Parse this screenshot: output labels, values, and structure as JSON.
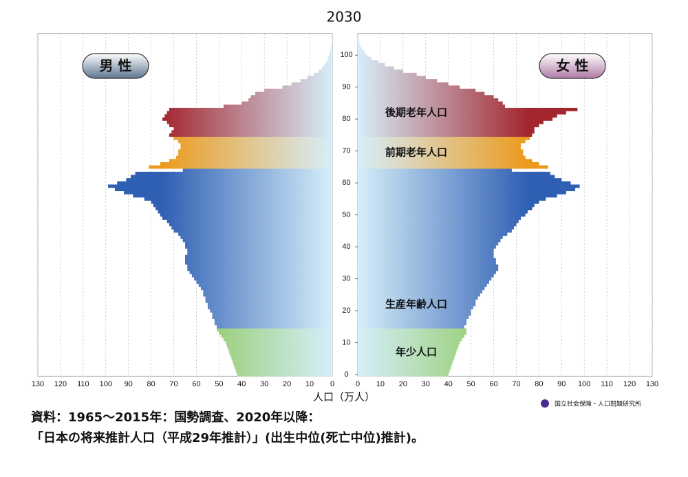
{
  "chart_data": {
    "type": "pyramid",
    "title": "2030",
    "x_label": "人口（万人）",
    "xlim": [
      0,
      130
    ],
    "xticks": [
      0,
      10,
      20,
      30,
      40,
      50,
      60,
      70,
      80,
      90,
      100,
      110,
      120,
      130
    ],
    "ylim": [
      0,
      105
    ],
    "yticks": [
      0,
      10,
      20,
      30,
      40,
      50,
      60,
      70,
      80,
      90,
      100
    ],
    "grid": true,
    "y": [
      0,
      1,
      2,
      3,
      4,
      5,
      6,
      7,
      8,
      9,
      10,
      11,
      12,
      13,
      14,
      15,
      16,
      17,
      18,
      19,
      20,
      21,
      22,
      23,
      24,
      25,
      26,
      27,
      28,
      29,
      30,
      31,
      32,
      33,
      34,
      35,
      36,
      37,
      38,
      39,
      40,
      41,
      42,
      43,
      44,
      45,
      46,
      47,
      48,
      49,
      50,
      51,
      52,
      53,
      54,
      55,
      56,
      57,
      58,
      59,
      60,
      61,
      62,
      63,
      64,
      65,
      66,
      67,
      68,
      69,
      70,
      71,
      72,
      73,
      74,
      75,
      76,
      77,
      78,
      79,
      80,
      81,
      82,
      83,
      84,
      85,
      86,
      87,
      88,
      89,
      90,
      91,
      92,
      93,
      94,
      95,
      96,
      97,
      98,
      99,
      100,
      101,
      102,
      103,
      104,
      105
    ],
    "bands": [
      {
        "name": "年少人口",
        "ages": [
          0,
          14
        ],
        "color": "#7fc241"
      },
      {
        "name": "生産年齢人口",
        "ages": [
          15,
          64
        ],
        "color": "#2f5fb3"
      },
      {
        "name": "前期老年人口",
        "ages": [
          65,
          74
        ],
        "color": "#ec9a1c"
      },
      {
        "name": "後期老年人口",
        "ages": [
          75,
          105
        ],
        "color": "#a3262f"
      }
    ],
    "series": [
      {
        "name": "男 性",
        "side": "left",
        "color": "#5d7590",
        "values": [
          42,
          42.5,
          43,
          43.5,
          44,
          44.5,
          45,
          45.5,
          46,
          46.5,
          47,
          48,
          49,
          50,
          51,
          51,
          52,
          52,
          53,
          53,
          54,
          55,
          55,
          56,
          56,
          57,
          57,
          58,
          59,
          60,
          61,
          62,
          63,
          64,
          64,
          65,
          65,
          65,
          64,
          64,
          65,
          65,
          66,
          67,
          68,
          70,
          71,
          72,
          73,
          75,
          76,
          77,
          78,
          79,
          80,
          83,
          88,
          92,
          96,
          99,
          95,
          91,
          89,
          87,
          66,
          81,
          76,
          72,
          69,
          68,
          68,
          67,
          67,
          68,
          70,
          72,
          71,
          70,
          72,
          73,
          75,
          74,
          73,
          72,
          48,
          40,
          37,
          36,
          34,
          30,
          22,
          18,
          14,
          11,
          8,
          6,
          4.5,
          3.5,
          2.5,
          2,
          1.5,
          1,
          0.7,
          0.5,
          0.3,
          0.2
        ]
      },
      {
        "name": "女 性",
        "side": "right",
        "color": "#b07aa6",
        "values": [
          40,
          40.5,
          41,
          41.5,
          42,
          42.5,
          43,
          43.5,
          44,
          44.5,
          45,
          46,
          47,
          48,
          48,
          47,
          48,
          48,
          49,
          50,
          50,
          51,
          52,
          52,
          53,
          54,
          55,
          56,
          57,
          58,
          59,
          60,
          61,
          62,
          62,
          61,
          61,
          60,
          60,
          60,
          61,
          62,
          63,
          64,
          66,
          68,
          69,
          70,
          71,
          72,
          74,
          75,
          77,
          78,
          80,
          83,
          88,
          92,
          96,
          98,
          94,
          90,
          87,
          85,
          68,
          84,
          80,
          77,
          74,
          73,
          73,
          72,
          72,
          74,
          76,
          77,
          78,
          78,
          80,
          82,
          86,
          88,
          92,
          97,
          65,
          64,
          62,
          60,
          56,
          52,
          45,
          40,
          35,
          30,
          26,
          20,
          16,
          12,
          9,
          6,
          4,
          3,
          2,
          1.2,
          0.7,
          0.4
        ]
      }
    ]
  },
  "source": [
    "資料：1965～2015年：国勢調査、2020年以降：",
    "「日本の将来推計人口（平成29年推計）」(出生中位(死亡中位)推計)。"
  ],
  "logo": "国立社会保障・人口問題研究所"
}
